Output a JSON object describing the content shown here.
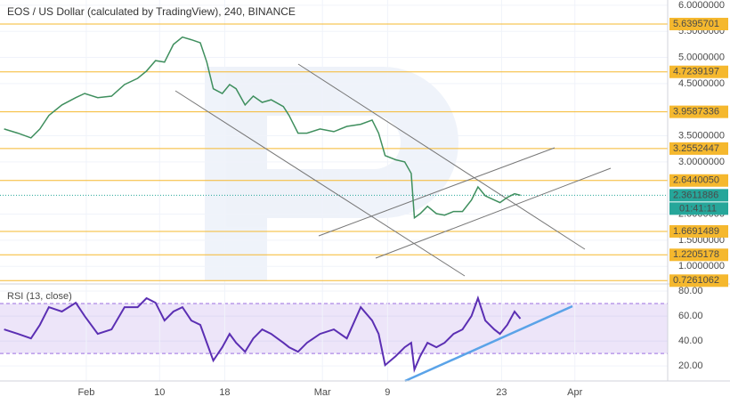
{
  "chart_data": [
    {
      "type": "line",
      "title": "EOS / US Dollar (calculated by TradingView), 240, BINANCE",
      "color": "#3f8f5e",
      "x": [
        -10.1,
        -8.4,
        -6.8,
        -5.7,
        -4.6,
        -3.0,
        -1.3,
        -0.2,
        1.4,
        3.1,
        4.7,
        6.3,
        7.4,
        8.5,
        9.6,
        10.7,
        11.8,
        12.9,
        14.0,
        14.8,
        15.6,
        16.7,
        17.6,
        18.4,
        19.5,
        20.5,
        21.6,
        22.7,
        24.2,
        24.9,
        26.0,
        27.1,
        28.7,
        30.4,
        32.0,
        33.7,
        35.1,
        35.9,
        36.7,
        38.0,
        39.1,
        39.9,
        40.3,
        41.0,
        41.9,
        43.0,
        44.0,
        45.1,
        46.2,
        47.3,
        48.1,
        49.0,
        50.1,
        50.8,
        51.7,
        52.6,
        53.3
      ],
      "values": [
        3.63,
        3.55,
        3.46,
        3.63,
        3.89,
        4.09,
        4.23,
        4.31,
        4.23,
        4.26,
        4.48,
        4.6,
        4.74,
        4.94,
        4.91,
        5.25,
        5.39,
        5.34,
        5.28,
        4.91,
        4.4,
        4.31,
        4.48,
        4.4,
        4.09,
        4.26,
        4.14,
        4.19,
        4.06,
        3.89,
        3.55,
        3.55,
        3.63,
        3.58,
        3.68,
        3.72,
        3.8,
        3.55,
        3.12,
        3.04,
        3.0,
        2.78,
        1.93,
        2.01,
        2.15,
        2.01,
        1.98,
        2.05,
        2.05,
        2.27,
        2.52,
        2.35,
        2.27,
        2.22,
        2.32,
        2.39,
        2.36
      ],
      "xlim": [
        -10.6,
        71.4
      ],
      "ylim": [
        0.68,
        6.1
      ],
      "yticks": [
        {
          "value": 6,
          "label": "6.0000000"
        },
        {
          "value": 5.5,
          "label": "5.5000000"
        },
        {
          "value": 5,
          "label": "5.0000000"
        },
        {
          "value": 4.5,
          "label": "4.5000000"
        },
        {
          "value": 3.5,
          "label": "3.5000000"
        },
        {
          "value": 3,
          "label": "3.0000000"
        },
        {
          "value": 2,
          "label": "2.0000000"
        },
        {
          "value": 1.5,
          "label": "1.5000000"
        },
        {
          "value": 1,
          "label": "1.0000000"
        }
      ],
      "levels": [
        {
          "value": 5.6395701,
          "label": "5.6395701"
        },
        {
          "value": 4.7239197,
          "label": "4.7239197"
        },
        {
          "value": 3.9587336,
          "label": "3.9587336"
        },
        {
          "value": 3.2552447,
          "label": "3.2552447"
        },
        {
          "value": 2.644005,
          "label": "2.6440050"
        },
        {
          "value": 1.6691489,
          "label": "1.6691489"
        },
        {
          "value": 1.2205178,
          "label": "1.2205178"
        },
        {
          "value": 0.7261062,
          "label": "0.7261062"
        }
      ],
      "level_color": "#f5b82e",
      "last_price": 2.3611886,
      "last_price_color": "#26a69a",
      "countdown": "01:41:11"
    },
    {
      "type": "line",
      "title": "RSI (13, close)",
      "color": "#5b2fb3",
      "x": [
        -10.1,
        -8.4,
        -6.8,
        -5.7,
        -4.6,
        -3.0,
        -1.3,
        -0.2,
        1.4,
        3.1,
        4.7,
        6.3,
        7.4,
        8.5,
        9.6,
        10.7,
        11.8,
        12.9,
        14.0,
        14.8,
        15.6,
        16.7,
        17.6,
        18.4,
        19.5,
        20.5,
        21.6,
        22.7,
        24.2,
        24.9,
        26.0,
        27.1,
        28.7,
        30.4,
        32.0,
        33.7,
        35.1,
        35.9,
        36.7,
        38.0,
        39.1,
        39.9,
        40.3,
        41.0,
        41.9,
        43.0,
        44.0,
        45.1,
        46.2,
        47.3,
        48.1,
        49.0,
        50.1,
        50.8,
        51.7,
        52.6,
        53.3
      ],
      "values": [
        49.3,
        45.7,
        42.1,
        52.9,
        67.1,
        63.6,
        70.7,
        60,
        45.7,
        49.3,
        67.1,
        67.1,
        74.3,
        70.7,
        56.4,
        63.6,
        67.1,
        56.4,
        52.9,
        38.6,
        24.3,
        35,
        45.7,
        38.6,
        31.4,
        42.1,
        49.3,
        45.7,
        38.6,
        35,
        31.4,
        38.6,
        45.7,
        49.3,
        42.1,
        67.1,
        56.4,
        45.7,
        20.7,
        27.9,
        35,
        38.6,
        17.1,
        27.9,
        38.6,
        35,
        38.6,
        45.7,
        49.3,
        60,
        74.3,
        56.4,
        49.3,
        45.7,
        52.9,
        63.6,
        57.9
      ],
      "xlim": [
        -10.6,
        71.4
      ],
      "ylim": [
        8,
        85
      ],
      "yticks": [
        {
          "value": 80,
          "label": "80.00"
        },
        {
          "value": 60,
          "label": "60.00"
        },
        {
          "value": 40,
          "label": "40.00"
        },
        {
          "value": 20,
          "label": "20.00"
        }
      ],
      "band": [
        30,
        70
      ],
      "band_color": "#9c6fe0",
      "xticks": [
        {
          "value": 0,
          "label": "Feb"
        },
        {
          "value": 9,
          "label": "10"
        },
        {
          "value": 17,
          "label": "18"
        },
        {
          "value": 29,
          "label": "Mar"
        },
        {
          "value": 37,
          "label": "9"
        },
        {
          "value": 51,
          "label": "23"
        },
        {
          "value": 60,
          "label": "Apr"
        }
      ]
    }
  ]
}
